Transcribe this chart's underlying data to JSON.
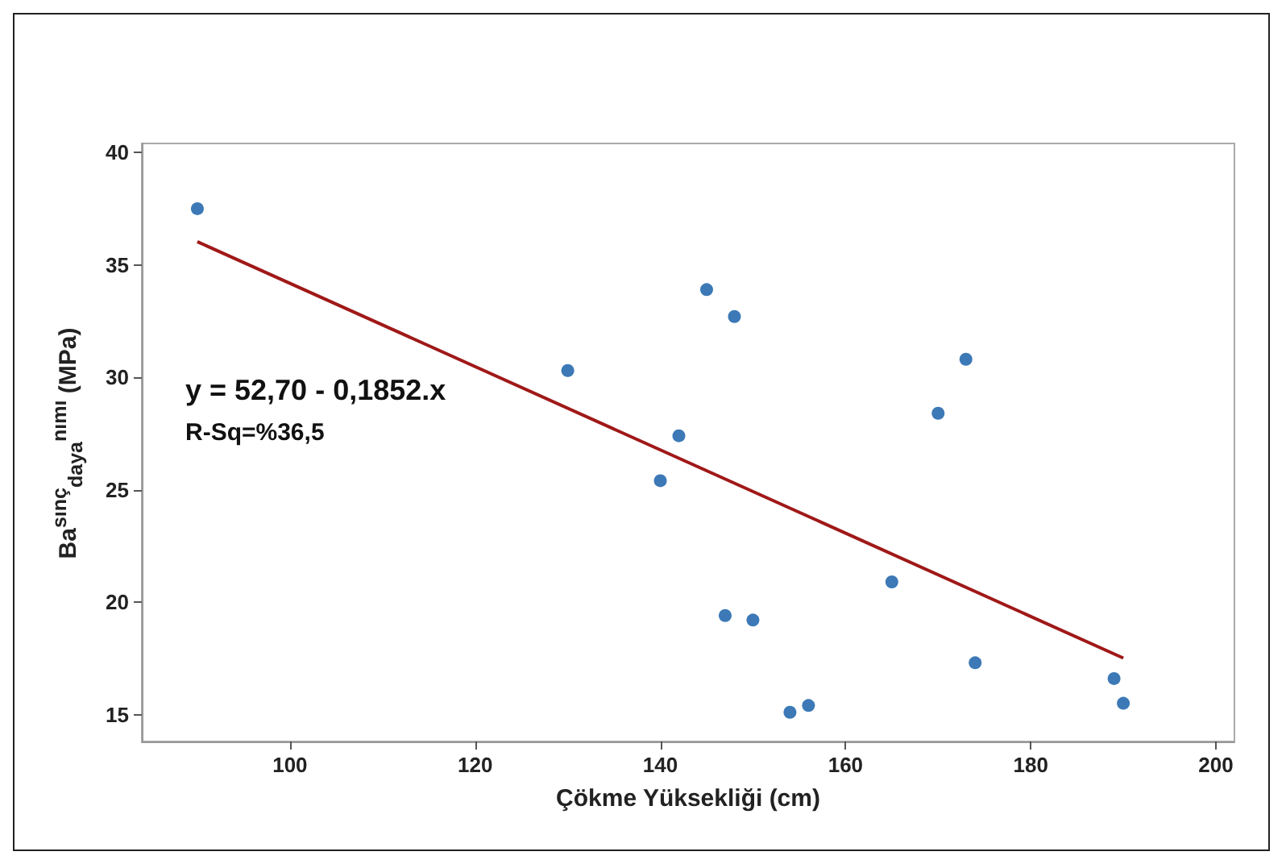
{
  "chart_data": {
    "type": "scatter",
    "xlabel": "Çökme Yüksekliği (cm)",
    "ylabel": "Ba$^{sınç}$$_{daya}$$^{nımı}$ (MPa)",
    "xlim": [
      84,
      202
    ],
    "xticks": [
      100,
      120,
      140,
      160,
      180,
      200
    ],
    "ylim": [
      13.8,
      40.4
    ],
    "yticks": [
      15,
      20,
      25,
      30,
      35,
      40
    ],
    "grid": false,
    "annotations": [
      "y = 52,70 - 0,1852.x",
      "R-Sq=%36,5"
    ],
    "series": [
      {
        "color": "#0b57a4",
        "marker": "circle",
        "x": [
          90,
          130,
          145,
          148,
          142,
          140,
          147,
          150,
          154,
          156,
          165,
          170,
          173,
          174,
          189,
          190
        ],
        "values": [
          37.5,
          30.3,
          33.9,
          32.7,
          27.4,
          25.4,
          19.4,
          19.2,
          15.1,
          15.4,
          20.9,
          28.4,
          30.8,
          17.3,
          16.6,
          15.5
        ]
      },
      {
        "type": "line",
        "color": "#a01818",
        "marker": "none",
        "x": [
          90,
          190
        ],
        "values": [
          36.03,
          17.51
        ]
      }
    ]
  }
}
